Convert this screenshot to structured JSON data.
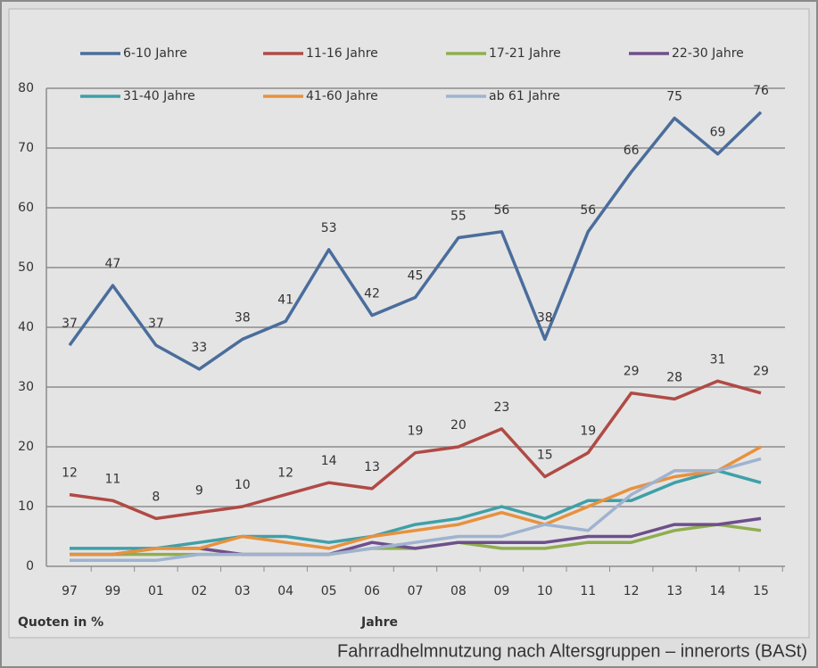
{
  "chart_data": {
    "type": "line",
    "caption": "Fahrradhelmnutzung nach Altersgruppen – innerorts (BASt)",
    "ylabel": "Quoten in %",
    "xlabel": "Jahre",
    "categories": [
      "97",
      "99",
      "01",
      "02",
      "03",
      "04",
      "05",
      "06",
      "07",
      "08",
      "09",
      "10",
      "11",
      "12",
      "13",
      "14",
      "15"
    ],
    "ylim": [
      0,
      80
    ],
    "yticks": [
      0,
      10,
      20,
      30,
      40,
      50,
      60,
      70,
      80
    ],
    "grid": true,
    "labeled_series": [
      0,
      1
    ],
    "series": [
      {
        "name": "6-10 Jahre",
        "color": "#4a6d9c",
        "values": [
          37,
          47,
          37,
          33,
          38,
          41,
          53,
          42,
          45,
          55,
          56,
          38,
          56,
          66,
          75,
          69,
          76
        ]
      },
      {
        "name": "11-16 Jahre",
        "color": "#b04a45",
        "values": [
          12,
          11,
          8,
          9,
          10,
          12,
          14,
          13,
          19,
          20,
          23,
          15,
          19,
          29,
          28,
          31,
          29
        ]
      },
      {
        "name": "17-21 Jahre",
        "color": "#8fae4f",
        "values": [
          2,
          2,
          2,
          2,
          2,
          2,
          2,
          3,
          3,
          4,
          3,
          3,
          4,
          4,
          6,
          7,
          6
        ]
      },
      {
        "name": "22-30 Jahre",
        "color": "#6e4f8c",
        "values": [
          2,
          2,
          3,
          3,
          2,
          2,
          2,
          4,
          3,
          4,
          4,
          4,
          5,
          5,
          7,
          7,
          8
        ]
      },
      {
        "name": "31-40 Jahre",
        "color": "#3fa0a8",
        "values": [
          3,
          3,
          3,
          4,
          5,
          5,
          4,
          5,
          7,
          8,
          10,
          8,
          11,
          11,
          14,
          16,
          14
        ]
      },
      {
        "name": "41-60 Jahre",
        "color": "#e8913e",
        "values": [
          2,
          2,
          3,
          3,
          5,
          4,
          3,
          5,
          6,
          7,
          9,
          7,
          10,
          13,
          15,
          16,
          20
        ]
      },
      {
        "name": "ab 61 Jahre",
        "color": "#9fb3d0",
        "values": [
          1,
          1,
          1,
          2,
          2,
          2,
          2,
          3,
          4,
          5,
          5,
          7,
          6,
          12,
          16,
          16,
          18
        ]
      }
    ]
  }
}
